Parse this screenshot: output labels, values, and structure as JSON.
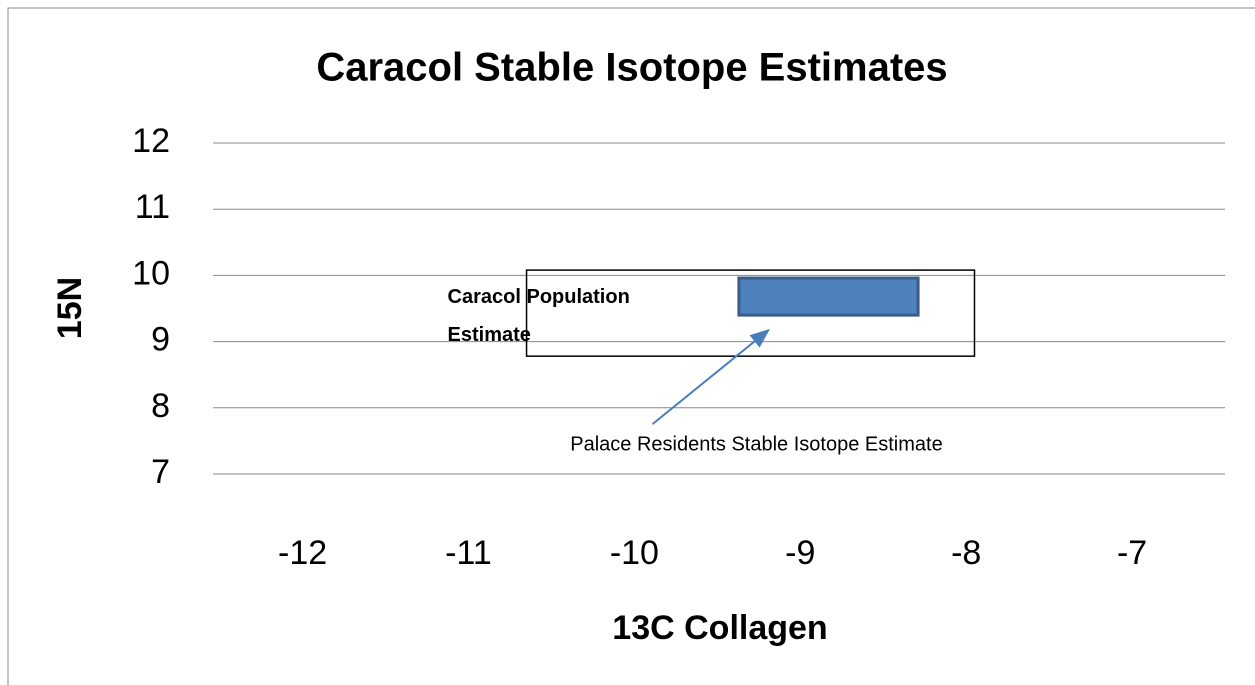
{
  "chart_data": {
    "type": "range-box",
    "title": "Caracol Stable Isotope Estimates",
    "x_label": "13C Collagen",
    "y_label": "15N",
    "xlim": [
      -12.54,
      -6.44
    ],
    "xticks": [
      -12,
      -11,
      -10,
      -9,
      -8,
      -7
    ],
    "ylim": [
      7,
      12
    ],
    "yticks": [
      7,
      8,
      9,
      10,
      11,
      12
    ],
    "grid": true,
    "boxes": [
      {
        "name": "Caracol Population Estimate",
        "xrange": [
          -10.65,
          -7.95
        ],
        "yrange": [
          8.78,
          10.08
        ],
        "color": "none",
        "edge": "#000000"
      },
      {
        "name": "Palace Residents Stable Isotope Estimate",
        "xrange": [
          -9.37,
          -8.29
        ],
        "yrange": [
          9.4,
          9.96
        ],
        "color": "#4f81bd",
        "edge": "#385d8a"
      }
    ]
  }
}
